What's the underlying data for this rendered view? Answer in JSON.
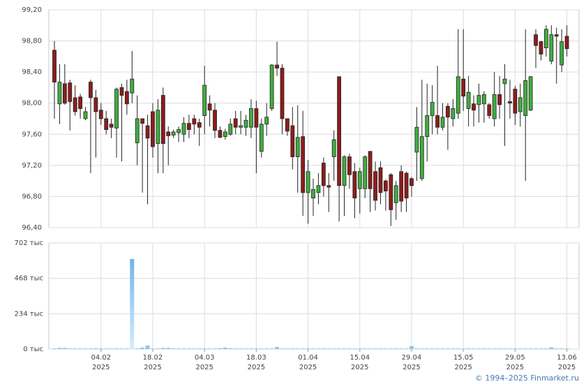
{
  "chart_data": {
    "type": "candlestick",
    "categories": [
      null,
      null,
      null,
      null,
      null,
      null,
      null,
      null,
      null,
      "04.02",
      null,
      null,
      null,
      null,
      null,
      null,
      null,
      null,
      null,
      "18.02",
      null,
      null,
      null,
      null,
      null,
      null,
      null,
      null,
      null,
      "04.03",
      null,
      null,
      null,
      null,
      null,
      null,
      null,
      null,
      null,
      "18.03",
      null,
      null,
      null,
      null,
      null,
      null,
      null,
      null,
      null,
      "01.04",
      null,
      null,
      null,
      null,
      null,
      null,
      null,
      null,
      null,
      "15.04",
      null,
      null,
      null,
      null,
      null,
      null,
      null,
      null,
      null,
      "29.04",
      null,
      null,
      null,
      null,
      null,
      null,
      null,
      null,
      null,
      "15.05",
      null,
      null,
      null,
      null,
      null,
      null,
      null,
      null,
      null,
      "29.05",
      null,
      null,
      null,
      null,
      null,
      null,
      null,
      null,
      null,
      "13.06"
    ],
    "category_years": [
      null,
      null,
      null,
      null,
      null,
      null,
      null,
      null,
      null,
      "2025",
      null,
      null,
      null,
      null,
      null,
      null,
      null,
      null,
      null,
      "2025",
      null,
      null,
      null,
      null,
      null,
      null,
      null,
      null,
      null,
      "2025",
      null,
      null,
      null,
      null,
      null,
      null,
      null,
      null,
      null,
      "2025",
      null,
      null,
      null,
      null,
      null,
      null,
      null,
      null,
      null,
      "2025",
      null,
      null,
      null,
      null,
      null,
      null,
      null,
      null,
      null,
      "2025",
      null,
      null,
      null,
      null,
      null,
      null,
      null,
      null,
      null,
      "2025",
      null,
      null,
      null,
      null,
      null,
      null,
      null,
      null,
      null,
      "2025",
      null,
      null,
      null,
      null,
      null,
      null,
      null,
      null,
      null,
      "2025",
      null,
      null,
      null,
      null,
      null,
      null,
      null,
      null,
      null,
      "2025"
    ],
    "open": [
      98.68,
      97.99,
      98.25,
      98.26,
      98.07,
      98.08,
      97.8,
      98.27,
      98.07,
      97.91,
      97.8,
      97.73,
      97.68,
      98.2,
      98.15,
      98.13,
      97.49,
      97.8,
      97.71,
      97.89,
      97.48,
      98.1,
      97.63,
      97.59,
      97.62,
      97.6,
      97.74,
      97.8,
      97.75,
      97.84,
      97.99,
      97.91,
      97.65,
      97.57,
      97.6,
      97.8,
      97.69,
      97.69,
      97.69,
      97.93,
      97.38,
      97.73,
      97.93,
      98.49,
      98.45,
      97.8,
      97.71,
      97.31,
      97.57,
      96.85,
      96.78,
      96.85,
      97.23,
      96.94,
      97.31,
      98.34,
      96.94,
      97.31,
      97.12,
      96.9,
      96.9,
      97.38,
      97.12,
      97.17,
      97.0,
      97.08,
      96.72,
      97.12,
      97.1,
      97.03,
      97.37,
      97.03,
      97.57,
      97.84,
      97.84,
      97.69,
      97.96,
      97.8,
      97.87,
      98.31,
      97.93,
      97.99,
      97.98,
      97.99,
      97.98,
      97.8,
      98.11,
      98.25,
      98.02,
      98.18,
      97.89,
      97.84,
      97.91,
      98.88,
      98.79,
      98.71,
      98.54,
      98.88,
      98.49,
      98.86
    ],
    "high": [
      98.8,
      98.5,
      98.5,
      98.3,
      98.23,
      98.12,
      97.95,
      98.3,
      98.17,
      98.0,
      97.9,
      97.8,
      98.2,
      98.25,
      98.3,
      98.67,
      98.1,
      97.8,
      97.85,
      98.0,
      98.05,
      98.2,
      97.7,
      97.66,
      97.7,
      97.82,
      97.85,
      97.85,
      97.8,
      98.48,
      98.1,
      98.0,
      97.7,
      97.67,
      97.8,
      97.9,
      97.9,
      97.85,
      98.05,
      98.03,
      97.8,
      98.0,
      98.5,
      98.79,
      98.5,
      97.8,
      97.95,
      97.97,
      97.9,
      97.27,
      97.03,
      97.1,
      97.3,
      97.1,
      97.65,
      98.34,
      97.33,
      97.35,
      97.23,
      97.17,
      97.33,
      97.38,
      97.25,
      97.25,
      97.02,
      97.1,
      97.0,
      97.2,
      97.12,
      97.05,
      97.95,
      98.3,
      98.25,
      98.23,
      98.48,
      98.0,
      98.0,
      98.05,
      98.95,
      98.95,
      98.35,
      98.1,
      98.25,
      98.15,
      98.0,
      98.4,
      98.35,
      98.5,
      98.3,
      98.22,
      98.25,
      98.95,
      98.35,
      98.95,
      98.8,
      99.0,
      99.0,
      98.97,
      98.95,
      99.0
    ],
    "low": [
      97.8,
      97.73,
      97.98,
      97.65,
      97.84,
      97.8,
      97.78,
      97.1,
      97.3,
      97.72,
      97.6,
      97.55,
      97.3,
      97.25,
      97.85,
      98.0,
      97.2,
      96.85,
      96.7,
      97.3,
      97.1,
      97.1,
      97.2,
      97.55,
      97.5,
      97.5,
      97.55,
      97.6,
      97.45,
      97.6,
      97.7,
      97.55,
      97.55,
      97.53,
      97.58,
      97.6,
      97.6,
      97.58,
      97.55,
      97.1,
      97.3,
      97.58,
      97.9,
      98.35,
      97.6,
      97.58,
      97.15,
      96.85,
      96.55,
      96.45,
      96.55,
      96.7,
      96.8,
      96.6,
      97.0,
      96.48,
      96.55,
      96.9,
      96.52,
      96.58,
      96.78,
      96.6,
      96.62,
      96.7,
      96.62,
      96.42,
      96.5,
      96.6,
      96.6,
      96.8,
      97.0,
      97.0,
      97.25,
      97.6,
      97.6,
      97.65,
      97.4,
      97.7,
      97.8,
      97.9,
      97.7,
      97.7,
      97.75,
      97.75,
      97.8,
      97.7,
      97.8,
      97.45,
      97.8,
      97.72,
      97.7,
      97.0,
      97.9,
      98.45,
      98.55,
      98.6,
      98.5,
      98.25,
      98.4,
      98.6
    ],
    "close": [
      98.27,
      98.27,
      98.0,
      98.02,
      97.89,
      97.93,
      97.89,
      98.07,
      97.89,
      97.8,
      97.66,
      97.69,
      98.18,
      98.1,
      97.99,
      98.31,
      97.8,
      97.74,
      97.55,
      97.44,
      97.91,
      97.48,
      97.58,
      97.63,
      97.66,
      97.74,
      97.66,
      97.73,
      97.69,
      98.23,
      97.91,
      97.65,
      97.56,
      97.63,
      97.73,
      97.69,
      97.71,
      97.78,
      97.93,
      97.69,
      97.73,
      97.82,
      98.49,
      98.45,
      97.8,
      97.64,
      97.31,
      97.56,
      96.85,
      97.12,
      96.89,
      96.94,
      96.94,
      96.92,
      97.53,
      96.94,
      97.31,
      97.08,
      96.78,
      97.12,
      97.31,
      96.9,
      96.75,
      96.85,
      96.87,
      96.63,
      96.94,
      96.74,
      96.78,
      96.94,
      97.69,
      97.57,
      97.84,
      98.01,
      97.69,
      97.82,
      97.82,
      97.93,
      98.34,
      98.09,
      98.14,
      97.91,
      98.1,
      98.11,
      97.84,
      98.11,
      97.98,
      98.31,
      98.0,
      97.87,
      98.07,
      98.29,
      98.34,
      98.74,
      98.63,
      98.95,
      98.88,
      98.86,
      98.79,
      98.7
    ],
    "volume": [
      4,
      8,
      8,
      4,
      4,
      4,
      4,
      4,
      6,
      4,
      4,
      4,
      4,
      4,
      4,
      596,
      4,
      10,
      24,
      4,
      4,
      8,
      8,
      4,
      4,
      4,
      4,
      4,
      4,
      4,
      4,
      4,
      6,
      10,
      6,
      4,
      4,
      4,
      4,
      4,
      4,
      4,
      4,
      14,
      4,
      4,
      4,
      4,
      4,
      4,
      4,
      4,
      4,
      4,
      4,
      4,
      4,
      4,
      4,
      4,
      4,
      4,
      4,
      4,
      4,
      4,
      4,
      4,
      4,
      20,
      4,
      4,
      4,
      4,
      4,
      4,
      4,
      4,
      4,
      4,
      4,
      4,
      4,
      4,
      4,
      4,
      4,
      4,
      4,
      4,
      4,
      4,
      4,
      4,
      4,
      4,
      12,
      4,
      4,
      4
    ],
    "ylim": [
      96.4,
      99.2
    ],
    "yticks": [
      {
        "value": 96.4,
        "label": "96,40"
      },
      {
        "value": 96.8,
        "label": "96,80"
      },
      {
        "value": 97.2,
        "label": "97,20"
      },
      {
        "value": 97.6,
        "label": "97,60"
      },
      {
        "value": 98.0,
        "label": "98,00"
      },
      {
        "value": 98.4,
        "label": "98,40"
      },
      {
        "value": 98.8,
        "label": "98,80"
      },
      {
        "value": 99.2,
        "label": "99,20"
      }
    ],
    "volume_ylim": [
      0,
      702
    ],
    "volume_yticks": [
      {
        "value": 0,
        "label": "0 тыс"
      },
      {
        "value": 234,
        "label": "234 тыс"
      },
      {
        "value": 468,
        "label": "468 тыс"
      },
      {
        "value": 702,
        "label": "702 тыс"
      }
    ],
    "grid": true,
    "up_color": "#3fae3f",
    "down_color": "#8e1c1c",
    "volume_color": "#8cc6f0"
  },
  "copyright": "© 1994–2025 Finmarket.ru"
}
